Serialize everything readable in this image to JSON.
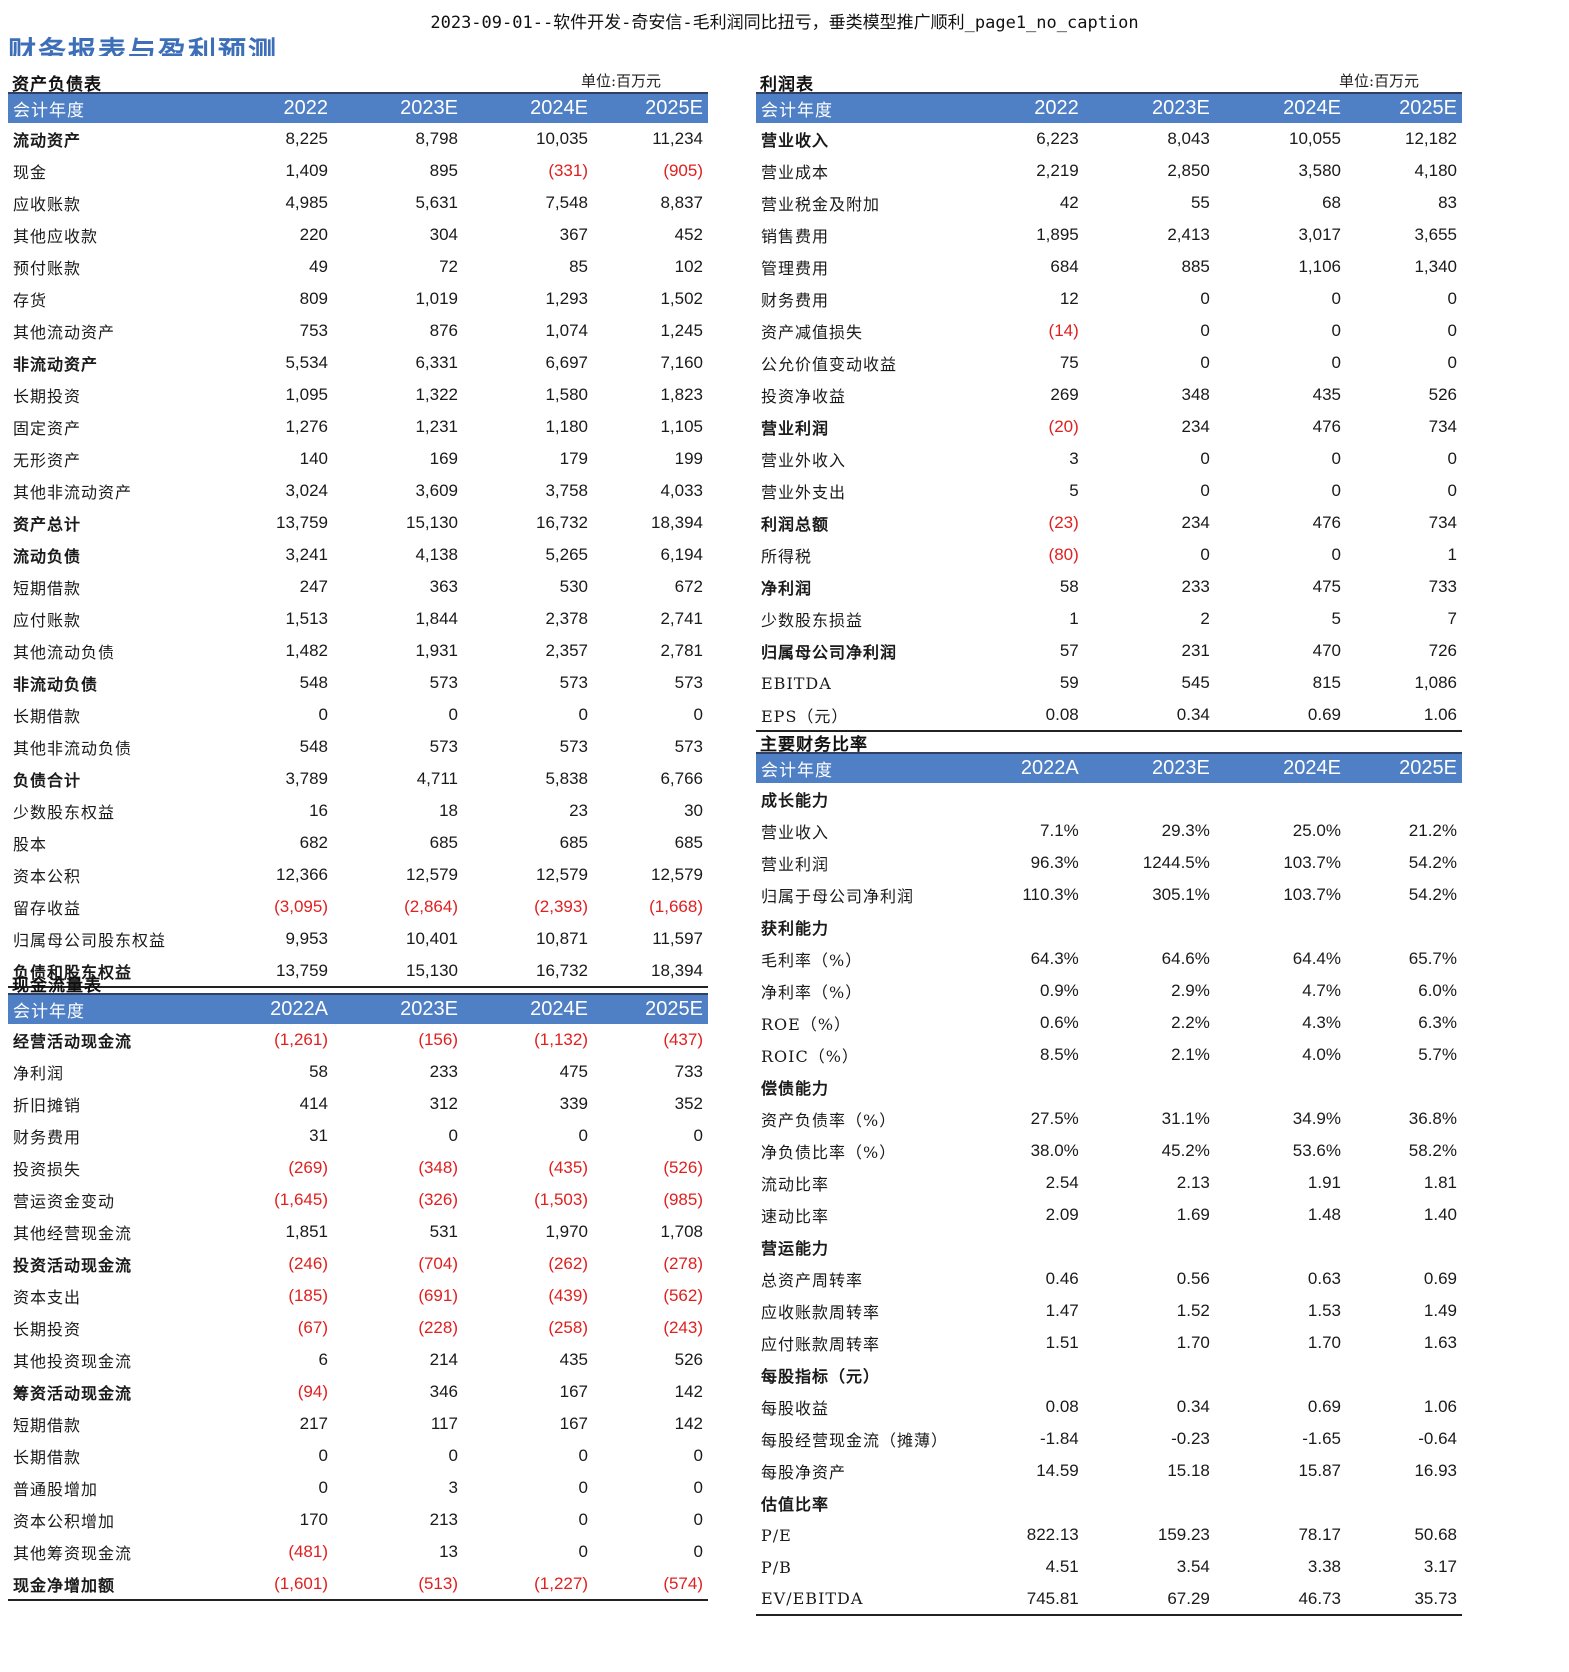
{
  "doc_title": "2023-09-01--软件开发-奇安信-毛利润同比扭亏，垂类模型推广顺利_page1_no_caption",
  "section_heading": "财务报表与盈利预测",
  "unit_label": "单位:百万元",
  "balance_sheet": {
    "title": "资产负债表",
    "header": [
      "会计年度",
      "2022",
      "2023E",
      "2024E",
      "2025E"
    ],
    "rows": [
      {
        "label": "流动资产",
        "values": [
          "8,225",
          "8,798",
          "10,035",
          "11,234"
        ],
        "bold": true
      },
      {
        "label": "现金",
        "values": [
          "1,409",
          "895",
          "(331)",
          "(905)"
        ]
      },
      {
        "label": "应收账款",
        "values": [
          "4,985",
          "5,631",
          "7,548",
          "8,837"
        ]
      },
      {
        "label": "其他应收款",
        "values": [
          "220",
          "304",
          "367",
          "452"
        ]
      },
      {
        "label": "预付账款",
        "values": [
          "49",
          "72",
          "85",
          "102"
        ]
      },
      {
        "label": "存货",
        "values": [
          "809",
          "1,019",
          "1,293",
          "1,502"
        ]
      },
      {
        "label": "其他流动资产",
        "values": [
          "753",
          "876",
          "1,074",
          "1,245"
        ]
      },
      {
        "label": "非流动资产",
        "values": [
          "5,534",
          "6,331",
          "6,697",
          "7,160"
        ],
        "bold": true
      },
      {
        "label": "长期投资",
        "values": [
          "1,095",
          "1,322",
          "1,580",
          "1,823"
        ]
      },
      {
        "label": "固定资产",
        "values": [
          "1,276",
          "1,231",
          "1,180",
          "1,105"
        ]
      },
      {
        "label": "无形资产",
        "values": [
          "140",
          "169",
          "179",
          "199"
        ]
      },
      {
        "label": "其他非流动资产",
        "values": [
          "3,024",
          "3,609",
          "3,758",
          "4,033"
        ]
      },
      {
        "label": "资产总计",
        "values": [
          "13,759",
          "15,130",
          "16,732",
          "18,394"
        ],
        "bold": true
      },
      {
        "label": "流动负债",
        "values": [
          "3,241",
          "4,138",
          "5,265",
          "6,194"
        ],
        "bold": true
      },
      {
        "label": "短期借款",
        "values": [
          "247",
          "363",
          "530",
          "672"
        ]
      },
      {
        "label": "应付账款",
        "values": [
          "1,513",
          "1,844",
          "2,378",
          "2,741"
        ]
      },
      {
        "label": "其他流动负债",
        "values": [
          "1,482",
          "1,931",
          "2,357",
          "2,781"
        ]
      },
      {
        "label": "非流动负债",
        "values": [
          "548",
          "573",
          "573",
          "573"
        ],
        "bold": true
      },
      {
        "label": "长期借款",
        "values": [
          "0",
          "0",
          "0",
          "0"
        ]
      },
      {
        "label": "其他非流动负债",
        "values": [
          "548",
          "573",
          "573",
          "573"
        ]
      },
      {
        "label": "负债合计",
        "values": [
          "3,789",
          "4,711",
          "5,838",
          "6,766"
        ],
        "bold": true
      },
      {
        "label": "少数股东权益",
        "values": [
          "16",
          "18",
          "23",
          "30"
        ]
      },
      {
        "label": "股本",
        "values": [
          "682",
          "685",
          "685",
          "685"
        ]
      },
      {
        "label": "资本公积",
        "values": [
          "12,366",
          "12,579",
          "12,579",
          "12,579"
        ]
      },
      {
        "label": "留存收益",
        "values": [
          "(3,095)",
          "(2,864)",
          "(2,393)",
          "(1,668)"
        ]
      },
      {
        "label": "归属母公司股东权益",
        "values": [
          "9,953",
          "10,401",
          "10,871",
          "11,597"
        ]
      },
      {
        "label": "负债和股东权益",
        "values": [
          "13,759",
          "15,130",
          "16,732",
          "18,394"
        ],
        "bold": true
      }
    ]
  },
  "income_statement": {
    "title": "利润表",
    "header": [
      "会计年度",
      "2022",
      "2023E",
      "2024E",
      "2025E"
    ],
    "rows": [
      {
        "label": "营业收入",
        "values": [
          "6,223",
          "8,043",
          "10,055",
          "12,182"
        ],
        "bold": true
      },
      {
        "label": "营业成本",
        "values": [
          "2,219",
          "2,850",
          "3,580",
          "4,180"
        ]
      },
      {
        "label": "营业税金及附加",
        "values": [
          "42",
          "55",
          "68",
          "83"
        ]
      },
      {
        "label": "销售费用",
        "values": [
          "1,895",
          "2,413",
          "3,017",
          "3,655"
        ]
      },
      {
        "label": "管理费用",
        "values": [
          "684",
          "885",
          "1,106",
          "1,340"
        ]
      },
      {
        "label": "财务费用",
        "values": [
          "12",
          "0",
          "0",
          "0"
        ]
      },
      {
        "label": "资产减值损失",
        "values": [
          "(14)",
          "0",
          "0",
          "0"
        ]
      },
      {
        "label": "公允价值变动收益",
        "values": [
          "75",
          "0",
          "0",
          "0"
        ]
      },
      {
        "label": "投资净收益",
        "values": [
          "269",
          "348",
          "435",
          "526"
        ]
      },
      {
        "label": "营业利润",
        "values": [
          "(20)",
          "234",
          "476",
          "734"
        ],
        "bold": true
      },
      {
        "label": "营业外收入",
        "values": [
          "3",
          "0",
          "0",
          "0"
        ]
      },
      {
        "label": "营业外支出",
        "values": [
          "5",
          "0",
          "0",
          "0"
        ]
      },
      {
        "label": "利润总额",
        "values": [
          "(23)",
          "234",
          "476",
          "734"
        ],
        "bold": true
      },
      {
        "label": "所得税",
        "values": [
          "(80)",
          "0",
          "0",
          "1"
        ]
      },
      {
        "label": "净利润",
        "values": [
          "58",
          "233",
          "475",
          "733"
        ],
        "bold": true
      },
      {
        "label": "少数股东损益",
        "values": [
          "1",
          "2",
          "5",
          "7"
        ]
      },
      {
        "label": "归属母公司净利润",
        "values": [
          "57",
          "231",
          "470",
          "726"
        ],
        "bold": true
      },
      {
        "label": "EBITDA",
        "values": [
          "59",
          "545",
          "815",
          "1,086"
        ]
      },
      {
        "label": "EPS（元）",
        "values": [
          "0.08",
          "0.34",
          "0.69",
          "1.06"
        ]
      }
    ]
  },
  "ratios": {
    "title": "主要财务比率",
    "header": [
      "会计年度",
      "2022A",
      "2023E",
      "2024E",
      "2025E"
    ],
    "rows": [
      {
        "label": "成长能力",
        "values": [
          "",
          "",
          "",
          ""
        ],
        "bold": true
      },
      {
        "label": "营业收入",
        "values": [
          "7.1%",
          "29.3%",
          "25.0%",
          "21.2%"
        ]
      },
      {
        "label": "营业利润",
        "values": [
          "96.3%",
          "1244.5%",
          "103.7%",
          "54.2%"
        ]
      },
      {
        "label": "归属于母公司净利润",
        "values": [
          "110.3%",
          "305.1%",
          "103.7%",
          "54.2%"
        ]
      },
      {
        "label": "获利能力",
        "values": [
          "",
          "",
          "",
          ""
        ],
        "bold": true
      },
      {
        "label": "毛利率（%）",
        "values": [
          "64.3%",
          "64.6%",
          "64.4%",
          "65.7%"
        ]
      },
      {
        "label": "净利率（%）",
        "values": [
          "0.9%",
          "2.9%",
          "4.7%",
          "6.0%"
        ]
      },
      {
        "label": "ROE（%）",
        "values": [
          "0.6%",
          "2.2%",
          "4.3%",
          "6.3%"
        ]
      },
      {
        "label": "ROIC（%）",
        "values": [
          "8.5%",
          "2.1%",
          "4.0%",
          "5.7%"
        ]
      },
      {
        "label": "偿债能力",
        "values": [
          "",
          "",
          "",
          ""
        ],
        "bold": true
      },
      {
        "label": "资产负债率（%）",
        "values": [
          "27.5%",
          "31.1%",
          "34.9%",
          "36.8%"
        ]
      },
      {
        "label": "净负债比率（%）",
        "values": [
          "38.0%",
          "45.2%",
          "53.6%",
          "58.2%"
        ]
      },
      {
        "label": "流动比率",
        "values": [
          "2.54",
          "2.13",
          "1.91",
          "1.81"
        ]
      },
      {
        "label": "速动比率",
        "values": [
          "2.09",
          "1.69",
          "1.48",
          "1.40"
        ]
      },
      {
        "label": "营运能力",
        "values": [
          "",
          "",
          "",
          ""
        ],
        "bold": true
      },
      {
        "label": "总资产周转率",
        "values": [
          "0.46",
          "0.56",
          "0.63",
          "0.69"
        ]
      },
      {
        "label": "应收账款周转率",
        "values": [
          "1.47",
          "1.52",
          "1.53",
          "1.49"
        ]
      },
      {
        "label": "应付账款周转率",
        "values": [
          "1.51",
          "1.70",
          "1.70",
          "1.63"
        ]
      },
      {
        "label": "每股指标（元）",
        "values": [
          "",
          "",
          "",
          ""
        ],
        "bold": true
      },
      {
        "label": "每股收益",
        "values": [
          "0.08",
          "0.34",
          "0.69",
          "1.06"
        ]
      },
      {
        "label": "每股经营现金流（摊薄）",
        "values": [
          "-1.84",
          "-0.23",
          "-1.65",
          "-0.64"
        ]
      },
      {
        "label": "每股净资产",
        "values": [
          "14.59",
          "15.18",
          "15.87",
          "16.93"
        ]
      },
      {
        "label": "估值比率",
        "values": [
          "",
          "",
          "",
          ""
        ],
        "bold": true
      },
      {
        "label": "P/E",
        "values": [
          "822.13",
          "159.23",
          "78.17",
          "50.68"
        ]
      },
      {
        "label": "P/B",
        "values": [
          "4.51",
          "3.54",
          "3.38",
          "3.17"
        ]
      },
      {
        "label": "EV/EBITDA",
        "values": [
          "745.81",
          "67.29",
          "46.73",
          "35.73"
        ]
      }
    ]
  },
  "cash_flow": {
    "title": "现金流量表",
    "header": [
      "会计年度",
      "2022A",
      "2023E",
      "2024E",
      "2025E"
    ],
    "rows": [
      {
        "label": "经营活动现金流",
        "values": [
          "(1,261)",
          "(156)",
          "(1,132)",
          "(437)"
        ],
        "bold": true
      },
      {
        "label": "净利润",
        "values": [
          "58",
          "233",
          "475",
          "733"
        ]
      },
      {
        "label": "折旧摊销",
        "values": [
          "414",
          "312",
          "339",
          "352"
        ]
      },
      {
        "label": "财务费用",
        "values": [
          "31",
          "0",
          "0",
          "0"
        ]
      },
      {
        "label": "投资损失",
        "values": [
          "(269)",
          "(348)",
          "(435)",
          "(526)"
        ]
      },
      {
        "label": "营运资金变动",
        "values": [
          "(1,645)",
          "(326)",
          "(1,503)",
          "(985)"
        ]
      },
      {
        "label": "其他经营现金流",
        "values": [
          "1,851",
          "531",
          "1,970",
          "1,708"
        ]
      },
      {
        "label": "投资活动现金流",
        "values": [
          "(246)",
          "(704)",
          "(262)",
          "(278)"
        ],
        "bold": true
      },
      {
        "label": "资本支出",
        "values": [
          "(185)",
          "(691)",
          "(439)",
          "(562)"
        ]
      },
      {
        "label": "长期投资",
        "values": [
          "(67)",
          "(228)",
          "(258)",
          "(243)"
        ]
      },
      {
        "label": "其他投资现金流",
        "values": [
          "6",
          "214",
          "435",
          "526"
        ]
      },
      {
        "label": "筹资活动现金流",
        "values": [
          "(94)",
          "346",
          "167",
          "142"
        ],
        "bold": true
      },
      {
        "label": "短期借款",
        "values": [
          "217",
          "117",
          "167",
          "142"
        ]
      },
      {
        "label": "长期借款",
        "values": [
          "0",
          "0",
          "0",
          "0"
        ]
      },
      {
        "label": "普通股增加",
        "values": [
          "0",
          "3",
          "0",
          "0"
        ]
      },
      {
        "label": "资本公积增加",
        "values": [
          "170",
          "213",
          "0",
          "0"
        ]
      },
      {
        "label": "其他筹资现金流",
        "values": [
          "(481)",
          "13",
          "0",
          "0"
        ]
      },
      {
        "label": "现金净增加额",
        "values": [
          "(1,601)",
          "(513)",
          "(1,227)",
          "(574)"
        ],
        "bold": true
      }
    ]
  }
}
